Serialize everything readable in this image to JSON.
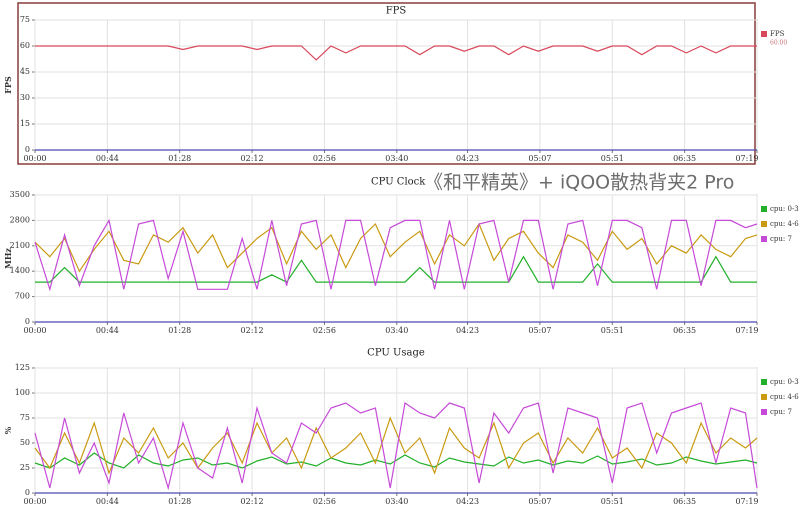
{
  "chart_data": [
    {
      "type": "line",
      "title": "FPS",
      "y_label": "FPS",
      "legend": "right",
      "grid": true,
      "x": [
        0,
        9,
        18,
        27,
        36,
        45,
        54,
        63,
        72,
        81,
        90,
        99,
        108,
        117,
        126,
        135,
        144,
        153,
        162,
        171,
        180,
        189,
        198,
        207,
        216,
        225,
        234,
        243,
        252,
        261,
        270,
        279,
        288,
        297,
        306,
        315,
        324,
        333,
        342,
        351,
        360,
        369,
        378,
        387,
        396,
        405,
        414,
        423,
        432,
        439
      ],
      "xlim": [
        0,
        439
      ],
      "xticks": [
        {
          "value": 0,
          "label": "00:00"
        },
        {
          "value": 44,
          "label": "00:44"
        },
        {
          "value": 88,
          "label": "01:28"
        },
        {
          "value": 132,
          "label": "02:12"
        },
        {
          "value": 176,
          "label": "02:56"
        },
        {
          "value": 220,
          "label": "03:40"
        },
        {
          "value": 263,
          "label": "04:23"
        },
        {
          "value": 307,
          "label": "05:07"
        },
        {
          "value": 351,
          "label": "05:51"
        },
        {
          "value": 395,
          "label": "06:35"
        },
        {
          "value": 439,
          "label": "07:19"
        }
      ],
      "ylim": [
        0,
        75
      ],
      "yticks": [
        0,
        15,
        30,
        45,
        60,
        75
      ],
      "series": [
        {
          "name": "FPS",
          "color": "#d9475a",
          "legend_note": {
            "value": 60,
            "label": "60.00"
          },
          "values": [
            60,
            60,
            60,
            60,
            60,
            60,
            60,
            60,
            60,
            60,
            58,
            60,
            60,
            60,
            60,
            58,
            60,
            60,
            60,
            52,
            60,
            56,
            60,
            60,
            60,
            60,
            55,
            60,
            60,
            57,
            60,
            60,
            55,
            60,
            57,
            60,
            60,
            60,
            57,
            60,
            60,
            55,
            60,
            60,
            56,
            60,
            56,
            60,
            60,
            60
          ]
        }
      ]
    },
    {
      "type": "line",
      "title": "CPU Clock",
      "annotation": "《和平精英》+ iQOO散热背夹2 Pro",
      "y_label": "MHz",
      "legend": "right",
      "grid": true,
      "x": [
        0,
        9,
        18,
        27,
        36,
        45,
        54,
        63,
        72,
        81,
        90,
        99,
        108,
        117,
        126,
        135,
        144,
        153,
        162,
        171,
        180,
        189,
        198,
        207,
        216,
        225,
        234,
        243,
        252,
        261,
        270,
        279,
        288,
        297,
        306,
        315,
        324,
        333,
        342,
        351,
        360,
        369,
        378,
        387,
        396,
        405,
        414,
        423,
        432,
        439
      ],
      "xlim": [
        0,
        439
      ],
      "xticks": [
        {
          "value": 0,
          "label": "00:00"
        },
        {
          "value": 44,
          "label": "00:44"
        },
        {
          "value": 88,
          "label": "01:28"
        },
        {
          "value": 132,
          "label": "02:12"
        },
        {
          "value": 176,
          "label": "02:56"
        },
        {
          "value": 220,
          "label": "03:40"
        },
        {
          "value": 263,
          "label": "04:23"
        },
        {
          "value": 307,
          "label": "05:07"
        },
        {
          "value": 351,
          "label": "05:51"
        },
        {
          "value": 395,
          "label": "06:35"
        },
        {
          "value": 439,
          "label": "07:19"
        }
      ],
      "ylim": [
        0,
        3500
      ],
      "yticks": [
        0,
        700,
        1400,
        2100,
        2800,
        3500
      ],
      "series": [
        {
          "name": "cpu: 0-3",
          "color": "#22b02a",
          "values": [
            1100,
            1100,
            1500,
            1100,
            1100,
            1100,
            1100,
            1100,
            1100,
            1100,
            1100,
            1100,
            1100,
            1100,
            1100,
            1100,
            1300,
            1100,
            1700,
            1100,
            1100,
            1100,
            1100,
            1100,
            1100,
            1100,
            1500,
            1100,
            1100,
            1100,
            1100,
            1100,
            1100,
            1800,
            1100,
            1100,
            1100,
            1100,
            1600,
            1100,
            1100,
            1100,
            1100,
            1100,
            1100,
            1100,
            1800,
            1100,
            1100,
            1100
          ]
        },
        {
          "name": "cpu: 4-6",
          "color": "#c99a12",
          "values": [
            2200,
            1800,
            2300,
            1400,
            2000,
            2500,
            1700,
            1600,
            2400,
            2200,
            2600,
            1900,
            2400,
            1500,
            1900,
            2300,
            2600,
            1600,
            2500,
            2000,
            2400,
            1500,
            2300,
            2700,
            1800,
            2200,
            2500,
            1600,
            2400,
            2100,
            2700,
            1700,
            2300,
            2500,
            1900,
            1500,
            2400,
            2200,
            1700,
            2500,
            2000,
            2300,
            1600,
            2100,
            1900,
            2400,
            2000,
            1800,
            2300,
            2400
          ]
        },
        {
          "name": "cpu: 7",
          "color": "#c64ad8",
          "values": [
            2200,
            900,
            2400,
            1000,
            2100,
            2800,
            900,
            2700,
            2800,
            1200,
            2500,
            900,
            900,
            900,
            2300,
            900,
            2800,
            1000,
            2700,
            2800,
            900,
            2800,
            2800,
            1000,
            2600,
            2800,
            2800,
            900,
            2800,
            900,
            2700,
            2800,
            1100,
            2800,
            2800,
            900,
            2700,
            2800,
            1000,
            2800,
            2800,
            2600,
            900,
            2800,
            2800,
            1000,
            2800,
            2800,
            2600,
            2700
          ]
        }
      ]
    },
    {
      "type": "line",
      "title": "CPU Usage",
      "y_label": "%",
      "legend": "right",
      "grid": true,
      "x": [
        0,
        9,
        18,
        27,
        36,
        45,
        54,
        63,
        72,
        81,
        90,
        99,
        108,
        117,
        126,
        135,
        144,
        153,
        162,
        171,
        180,
        189,
        198,
        207,
        216,
        225,
        234,
        243,
        252,
        261,
        270,
        279,
        288,
        297,
        306,
        315,
        324,
        333,
        342,
        351,
        360,
        369,
        378,
        387,
        396,
        405,
        414,
        423,
        432,
        439
      ],
      "xlim": [
        0,
        439
      ],
      "xticks": [
        {
          "value": 0,
          "label": "00:00"
        },
        {
          "value": 44,
          "label": "00:44"
        },
        {
          "value": 88,
          "label": "01:28"
        },
        {
          "value": 132,
          "label": "02:12"
        },
        {
          "value": 176,
          "label": "02:56"
        },
        {
          "value": 220,
          "label": "03:40"
        },
        {
          "value": 263,
          "label": "04:23"
        },
        {
          "value": 307,
          "label": "05:07"
        },
        {
          "value": 351,
          "label": "05:51"
        },
        {
          "value": 395,
          "label": "06:35"
        },
        {
          "value": 439,
          "label": "07:19"
        }
      ],
      "ylim": [
        0,
        125
      ],
      "yticks": [
        0,
        25,
        50,
        75,
        100,
        125
      ],
      "series": [
        {
          "name": "cpu: 0-3",
          "color": "#22b02a",
          "values": [
            30,
            25,
            35,
            28,
            40,
            30,
            25,
            38,
            30,
            27,
            33,
            35,
            28,
            30,
            25,
            32,
            36,
            29,
            31,
            27,
            35,
            30,
            28,
            33,
            29,
            38,
            30,
            26,
            35,
            31,
            29,
            27,
            36,
            30,
            33,
            28,
            32,
            30,
            37,
            29,
            31,
            34,
            28,
            30,
            36,
            32,
            29,
            31,
            33,
            30
          ]
        },
        {
          "name": "cpu: 4-6",
          "color": "#c99a12",
          "values": [
            45,
            25,
            60,
            30,
            70,
            20,
            55,
            40,
            65,
            35,
            50,
            25,
            45,
            60,
            30,
            70,
            40,
            55,
            25,
            65,
            35,
            45,
            60,
            30,
            75,
            40,
            55,
            20,
            65,
            45,
            35,
            70,
            25,
            50,
            60,
            30,
            55,
            40,
            65,
            35,
            45,
            25,
            60,
            50,
            30,
            70,
            40,
            55,
            45,
            55
          ]
        },
        {
          "name": "cpu: 7",
          "color": "#c64ad8",
          "values": [
            60,
            5,
            75,
            20,
            50,
            10,
            80,
            30,
            55,
            5,
            70,
            25,
            15,
            65,
            10,
            85,
            40,
            30,
            70,
            60,
            85,
            90,
            80,
            85,
            5,
            90,
            80,
            75,
            90,
            85,
            10,
            80,
            60,
            85,
            90,
            20,
            85,
            80,
            75,
            10,
            85,
            90,
            40,
            80,
            85,
            90,
            30,
            85,
            80,
            5
          ]
        }
      ]
    }
  ]
}
